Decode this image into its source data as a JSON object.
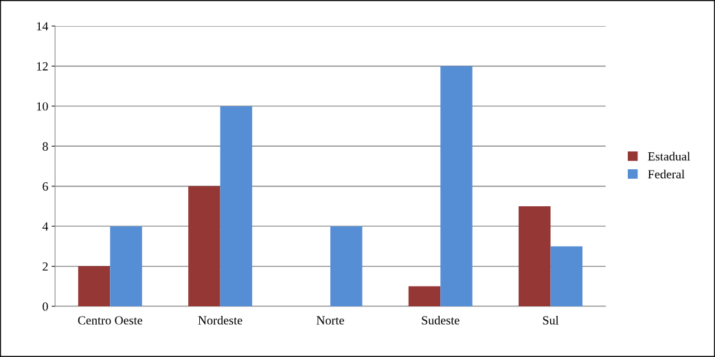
{
  "chart_data": {
    "type": "bar",
    "categories": [
      "Centro Oeste",
      "Nordeste",
      "Norte",
      "Sudeste",
      "Sul"
    ],
    "series": [
      {
        "name": "Estadual",
        "color": "#953735",
        "values": [
          2,
          6,
          0,
          1,
          5
        ]
      },
      {
        "name": "Federal",
        "color": "#558ed5",
        "values": [
          4,
          10,
          4,
          12,
          3
        ]
      }
    ],
    "ylim": [
      0,
      14
    ],
    "yticks": [
      0,
      2,
      4,
      6,
      8,
      10,
      12,
      14
    ],
    "grid": "y",
    "legend": "right"
  }
}
